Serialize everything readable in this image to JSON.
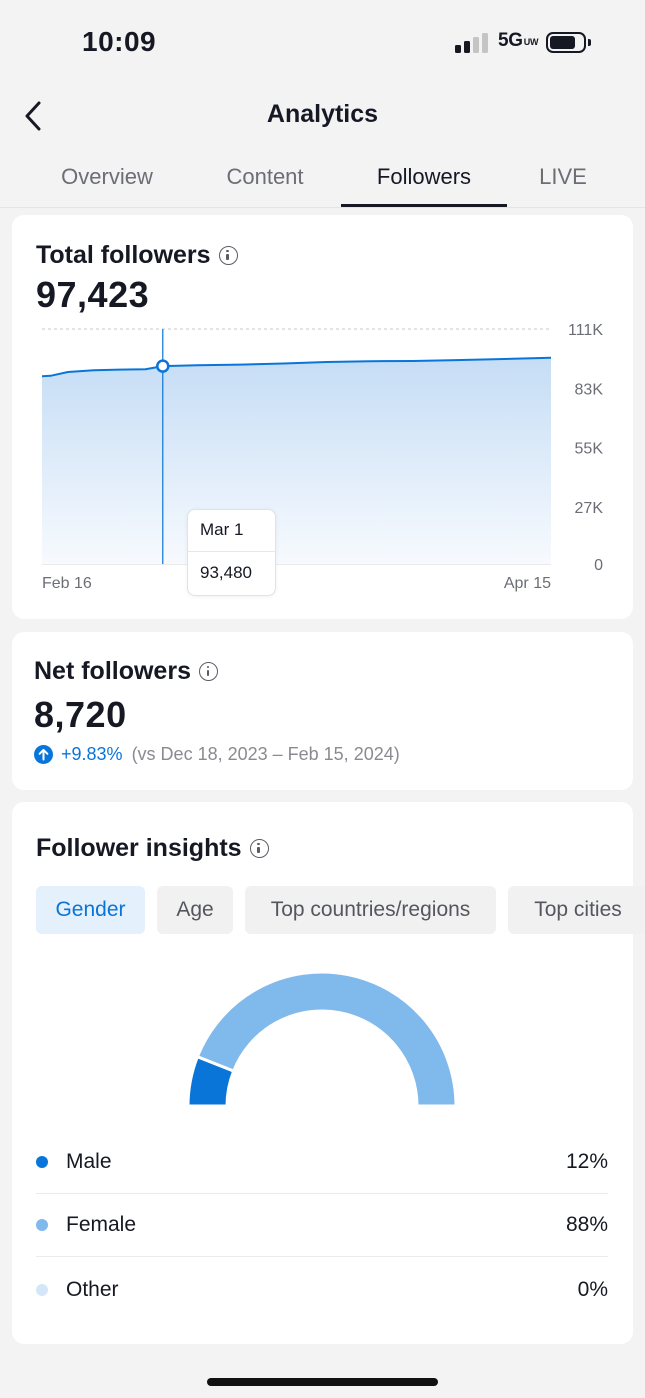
{
  "status_bar": {
    "time": "10:09",
    "network": "5G",
    "network_suffix": "UW"
  },
  "nav": {
    "title": "Analytics"
  },
  "tabs": [
    {
      "label": "Overview",
      "active": false
    },
    {
      "label": "Content",
      "active": false
    },
    {
      "label": "Followers",
      "active": true
    },
    {
      "label": "LIVE",
      "active": false
    }
  ],
  "total_followers": {
    "title": "Total followers",
    "value": "97,423",
    "tooltip": {
      "date": "Mar 1",
      "value": "93,480"
    }
  },
  "net_followers": {
    "title": "Net followers",
    "value": "8,720",
    "change": "+9.83%",
    "comparison": "(vs Dec 18, 2023 – Feb 15, 2024)"
  },
  "follower_insights": {
    "title": "Follower insights",
    "filters": [
      {
        "label": "Gender",
        "active": true
      },
      {
        "label": "Age",
        "active": false
      },
      {
        "label": "Top countries/regions",
        "active": false
      },
      {
        "label": "Top cities",
        "active": false
      }
    ],
    "legend": [
      {
        "label": "Male",
        "value": "12%",
        "color": "#0a75d8"
      },
      {
        "label": "Female",
        "value": "88%",
        "color": "#80b9ec"
      },
      {
        "label": "Other",
        "value": "0%",
        "color": "#d4e7f8"
      }
    ]
  },
  "chart_data": [
    {
      "type": "area",
      "x_labels": [
        "Feb 16",
        "Apr 15"
      ],
      "y_tick_labels": [
        "111K",
        "83K",
        "55K",
        "27K",
        "0"
      ],
      "y_ticks": [
        111000,
        83000,
        55000,
        27000,
        0
      ],
      "ylim": [
        0,
        111000
      ],
      "grid": true,
      "line_color": "#0a75d8",
      "highlight": {
        "x": "Mar 1",
        "y": 93480
      },
      "x": [
        "Feb 16",
        "Feb 17",
        "Feb 19",
        "Feb 22",
        "Feb 25",
        "Feb 28",
        "Mar 1",
        "Mar 5",
        "Mar 10",
        "Mar 15",
        "Mar 20",
        "Mar 25",
        "Mar 30",
        "Apr 4",
        "Apr 9",
        "Apr 15"
      ],
      "values": [
        88700,
        88900,
        90700,
        91500,
        91800,
        92000,
        93480,
        93900,
        94200,
        94700,
        95400,
        95800,
        95900,
        96300,
        96800,
        97423
      ]
    },
    {
      "type": "pie",
      "style": "half-donut",
      "categories": [
        "Male",
        "Female",
        "Other"
      ],
      "values": [
        12,
        88,
        0
      ],
      "colors": [
        "#0a75d8",
        "#80b9ec",
        "#d4e7f8"
      ]
    }
  ]
}
